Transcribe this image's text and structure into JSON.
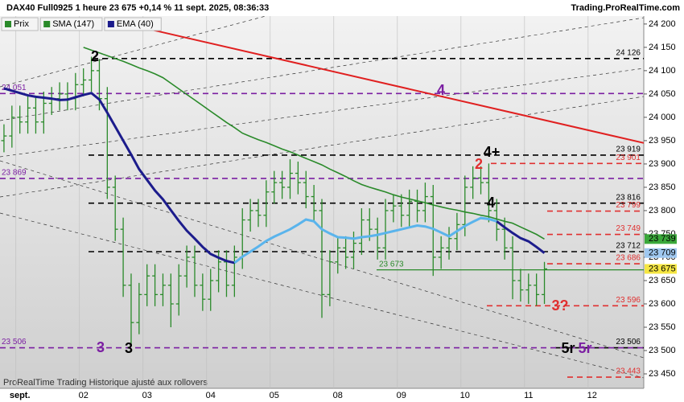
{
  "chart_data": {
    "type": "ohlc",
    "title": "DAX40 Full0925 1 heure 23 675 +0,14 % 11 sept. 2025, 08:36:33",
    "source": "Trading.ProRealTime.com",
    "footer": "ProRealTime Trading  Historique ajusté aux rollovers",
    "categories": [
      null,
      null,
      "sept.",
      null,
      null,
      null,
      null,
      null,
      null,
      null,
      "02",
      null,
      null,
      null,
      null,
      null,
      null,
      null,
      "03",
      null,
      null,
      null,
      null,
      null,
      null,
      null,
      "04",
      null,
      null,
      null,
      null,
      null,
      null,
      null,
      "05",
      null,
      null,
      null,
      null,
      null,
      null,
      null,
      "08",
      null,
      null,
      null,
      null,
      null,
      null,
      null,
      "09",
      null,
      null,
      null,
      null,
      null,
      null,
      null,
      "10",
      null,
      null,
      null,
      null,
      null,
      null,
      null,
      "11",
      null,
      null,
      null,
      null,
      null,
      null,
      null,
      "12",
      null,
      null,
      null,
      null,
      null,
      null
    ],
    "ylim": [
      23419,
      24217
    ],
    "yticks": [
      {
        "value": 23450,
        "label": "23 450"
      },
      {
        "value": 23500,
        "label": "23 500"
      },
      {
        "value": 23550,
        "label": "23 550"
      },
      {
        "value": 23600,
        "label": "23 600"
      },
      {
        "value": 23650,
        "label": "23 650"
      },
      {
        "value": 23700,
        "label": "23 700"
      },
      {
        "value": 23750,
        "label": "23 750"
      },
      {
        "value": 23800,
        "label": "23 800"
      },
      {
        "value": 23850,
        "label": "23 850"
      },
      {
        "value": 23900,
        "label": "23 900"
      },
      {
        "value": 23950,
        "label": "23 950"
      },
      {
        "value": 24000,
        "label": "24 000"
      },
      {
        "value": 24050,
        "label": "24 050"
      },
      {
        "value": 24100,
        "label": "24 100"
      },
      {
        "value": 24150,
        "label": "24 150"
      },
      {
        "value": 24200,
        "label": "24 200"
      }
    ],
    "series": [
      {
        "name": "Prix",
        "color": "#2a8a2a",
        "last_label": {
          "value": 23675,
          "label": "23 675",
          "color": "#f5e642"
        },
        "open": [
          23950,
          23960,
          24000,
          23990,
          24020,
          23990,
          24030,
          24040,
          24050,
          24040,
          24070,
          24080,
          24100,
          24040,
          23850,
          23760,
          23640,
          23560,
          23620,
          23660,
          23620,
          23640,
          23600,
          23660,
          23700,
          23640,
          23610,
          23650,
          23690,
          23640,
          23700,
          23780,
          23800,
          23790,
          23840,
          23860,
          23850,
          23880,
          23860,
          23830,
          23800,
          23620,
          23690,
          23720,
          23700,
          23730,
          23780,
          23760,
          23720,
          23800,
          23810,
          23790,
          23820,
          23800,
          23830,
          23700,
          23720,
          23740,
          23770,
          23850,
          23870,
          23860,
          23800,
          23760,
          23720,
          23650,
          23630,
          23640,
          23620,
          null,
          null,
          null,
          null,
          null,
          null,
          null,
          null,
          null,
          null,
          null,
          null
        ],
        "high": [
          23985,
          24025,
          24025,
          24045,
          24045,
          24055,
          24065,
          24075,
          24075,
          24095,
          24105,
          24130,
          24125,
          24065,
          23875,
          23785,
          23665,
          23645,
          23685,
          23685,
          23665,
          23665,
          23685,
          23725,
          23725,
          23665,
          23675,
          23715,
          23715,
          23725,
          23805,
          23825,
          23825,
          23865,
          23885,
          23885,
          23910,
          23905,
          23885,
          23855,
          23825,
          23715,
          23745,
          23745,
          23755,
          23805,
          23805,
          23785,
          23825,
          23835,
          23835,
          23845,
          23845,
          23860,
          23855,
          23745,
          23765,
          23795,
          23875,
          23895,
          23895,
          23901,
          23825,
          23785,
          23745,
          23675,
          23665,
          23665,
          23690,
          null,
          null,
          null,
          null,
          null,
          null,
          null,
          null,
          null,
          null,
          null,
          null
        ],
        "low": [
          23925,
          23935,
          23965,
          23965,
          23965,
          23965,
          24005,
          24015,
          24015,
          24015,
          24045,
          24055,
          24015,
          23825,
          23735,
          23615,
          23510,
          23535,
          23595,
          23595,
          23595,
          23550,
          23575,
          23635,
          23615,
          23585,
          23585,
          23625,
          23615,
          23615,
          23675,
          23755,
          23765,
          23765,
          23815,
          23825,
          23825,
          23835,
          23805,
          23775,
          23570,
          23595,
          23665,
          23675,
          23675,
          23705,
          23735,
          23695,
          23695,
          23775,
          23765,
          23765,
          23775,
          23775,
          23660,
          23675,
          23695,
          23715,
          23745,
          23825,
          23835,
          23775,
          23735,
          23695,
          23610,
          23605,
          23600,
          23596,
          23600,
          null,
          null,
          null,
          null,
          null,
          null,
          null,
          null,
          null,
          null,
          null,
          null
        ],
        "close": [
          23960,
          24000,
          23990,
          24020,
          23990,
          24030,
          24040,
          24050,
          24040,
          24070,
          24080,
          24100,
          24040,
          23850,
          23760,
          23640,
          23560,
          23620,
          23660,
          23620,
          23640,
          23600,
          23660,
          23700,
          23640,
          23610,
          23650,
          23690,
          23640,
          23700,
          23780,
          23800,
          23790,
          23840,
          23860,
          23850,
          23880,
          23860,
          23830,
          23800,
          23620,
          23690,
          23720,
          23700,
          23730,
          23780,
          23760,
          23720,
          23800,
          23810,
          23790,
          23820,
          23800,
          23830,
          23700,
          23720,
          23740,
          23770,
          23850,
          23870,
          23860,
          23800,
          23760,
          23720,
          23650,
          23630,
          23640,
          23620,
          23675,
          null,
          null,
          null,
          null,
          null,
          null,
          null,
          null,
          null,
          null,
          null,
          null
        ]
      },
      {
        "name": "SMA (147)",
        "type": "line",
        "color": "#2a8a2a",
        "last_label": {
          "value": 23739,
          "label": "23 739",
          "color": "#3aa83a"
        },
        "values": [
          null,
          null,
          null,
          null,
          null,
          null,
          null,
          null,
          null,
          null,
          24150,
          24144,
          24138,
          24132,
          24126,
          24120,
          24113,
          24106,
          24100,
          24093,
          24085,
          24073,
          24061,
          24049,
          24037,
          24025,
          24013,
          24001,
          23989,
          23978,
          23966,
          23959,
          23952,
          23946,
          23939,
          23932,
          23926,
          23919,
          23912,
          23905,
          23898,
          23889,
          23881,
          23873,
          23864,
          23856,
          23850,
          23845,
          23840,
          23834,
          23829,
          23825,
          23821,
          23817,
          23812,
          23808,
          23804,
          23801,
          23797,
          23794,
          23790,
          23787,
          23782,
          23777,
          23773,
          23765,
          23757,
          23749,
          23739,
          null,
          null,
          null,
          null,
          null,
          null,
          null,
          null,
          null,
          null,
          null,
          null
        ]
      },
      {
        "name": "EMA (40)",
        "type": "line",
        "color": "#1c1c8c",
        "last_label": {
          "value": 23709,
          "label": "23 709",
          "color": "#9fc8f0"
        },
        "values": [
          24062,
          24057,
          24052,
          24047,
          24044,
          24042,
          24040,
          24037,
          24038,
          24043,
          24048,
          24052,
          24038,
          24010,
          23980,
          23950,
          23920,
          23889,
          23866,
          23843,
          23824,
          23801,
          23778,
          23757,
          23740,
          23722,
          23707,
          23699,
          23692,
          23688,
          23701,
          23712,
          23723,
          23735,
          23744,
          23752,
          23760,
          23770,
          23781,
          23777,
          23760,
          23751,
          23743,
          23742,
          23740,
          23743,
          23745,
          23748,
          23752,
          23756,
          23760,
          23764,
          23768,
          23766,
          23761,
          23753,
          23745,
          23756,
          23767,
          23776,
          23784,
          23782,
          23777,
          23764,
          23752,
          23741,
          23734,
          23722,
          23709,
          null,
          null,
          null,
          null,
          null,
          null,
          null,
          null,
          null,
          null,
          null,
          null
        ],
        "colors": [
          "#1c1c8c",
          "#1c1c8c",
          "#1c1c8c",
          "#1c1c8c",
          "#1c1c8c",
          "#1c1c8c",
          "#1c1c8c",
          "#1c1c8c",
          "#1c1c8c",
          "#1c1c8c",
          "#1c1c8c",
          "#1c1c8c",
          "#1c1c8c",
          "#1c1c8c",
          "#1c1c8c",
          "#1c1c8c",
          "#1c1c8c",
          "#1c1c8c",
          "#1c1c8c",
          "#1c1c8c",
          "#1c1c8c",
          "#1c1c8c",
          "#1c1c8c",
          "#1c1c8c",
          "#1c1c8c",
          "#1c1c8c",
          "#1c1c8c",
          "#1c1c8c",
          "#1c1c8c",
          "#1c1c8c",
          "#5ab4ec",
          "#5ab4ec",
          "#5ab4ec",
          "#5ab4ec",
          "#5ab4ec",
          "#5ab4ec",
          "#5ab4ec",
          "#5ab4ec",
          "#5ab4ec",
          "#5ab4ec",
          "#5ab4ec",
          "#5ab4ec",
          "#5ab4ec",
          "#5ab4ec",
          "#5ab4ec",
          "#5ab4ec",
          "#5ab4ec",
          "#5ab4ec",
          "#5ab4ec",
          "#5ab4ec",
          "#5ab4ec",
          "#5ab4ec",
          "#5ab4ec",
          "#5ab4ec",
          "#5ab4ec",
          "#5ab4ec",
          "#5ab4ec",
          "#5ab4ec",
          "#5ab4ec",
          "#5ab4ec",
          "#5ab4ec",
          "#5ab4ec",
          "#5ab4ec",
          "#1c1c8c",
          "#1c1c8c",
          "#1c1c8c",
          "#1c1c8c",
          "#1c1c8c",
          "#1c1c8c",
          null,
          null,
          null,
          null,
          null,
          null,
          null,
          null,
          null,
          null,
          null,
          null
        ]
      }
    ],
    "levels": [
      {
        "value": 24126,
        "label": "24 126",
        "color": "#000000",
        "style": "dashed",
        "label_side": "right"
      },
      {
        "value": 24051,
        "label": "24 051",
        "color": "#7b1fa2",
        "style": "dashed",
        "label_side": "left"
      },
      {
        "value": 23919,
        "label": "23 919",
        "color": "#000000",
        "style": "dashed",
        "label_side": "right"
      },
      {
        "value": 23901,
        "label": "23 901",
        "color": "#e03030",
        "style": "dashed",
        "label_side": "right"
      },
      {
        "value": 23869,
        "label": "23 869",
        "color": "#7b1fa2",
        "style": "dashed",
        "label_side": "left"
      },
      {
        "value": 23816,
        "label": "23 816",
        "color": "#000000",
        "style": "dashed",
        "label_side": "right"
      },
      {
        "value": 23799,
        "label": "23 799",
        "color": "#e03030",
        "style": "dashed",
        "label_side": "right"
      },
      {
        "value": 23749,
        "label": "23 749",
        "color": "#e03030",
        "style": "dashed",
        "label_side": "right"
      },
      {
        "value": 23712,
        "label": "23 712",
        "color": "#000000",
        "style": "dashed",
        "label_side": "right"
      },
      {
        "value": 23686,
        "label": "23 686",
        "color": "#e03030",
        "style": "dashed",
        "label_side": "right"
      },
      {
        "value": 23673,
        "label": "23 673",
        "color": "#2a8a2a",
        "style": "solid",
        "label_side": "start"
      },
      {
        "value": 23596,
        "label": "23 596",
        "color": "#e03030",
        "style": "dashed",
        "label_side": "right"
      },
      {
        "value": 23506,
        "label": "23 506",
        "color": "#000000",
        "style": "dashed",
        "label_side": "right"
      },
      {
        "value": 23506,
        "label": "23 506",
        "color": "#7b1fa2",
        "style": "dashed",
        "label_side": "left"
      },
      {
        "value": 23443,
        "label": "23 443",
        "color": "#e03030",
        "style": "dashed",
        "label_side": "right"
      }
    ],
    "trend_lines": [
      {
        "color": "#e02020",
        "values": [
          24191,
          23945
        ]
      }
    ],
    "annotations": [
      {
        "text": "2",
        "color": "#000000"
      },
      {
        "text": "3",
        "color": "#000000"
      },
      {
        "text": "3",
        "color": "#7b1fa2"
      },
      {
        "text": "4",
        "color": "#7b1fa2"
      },
      {
        "text": "4+",
        "color": "#000000"
      },
      {
        "text": "2",
        "color": "#e03030"
      },
      {
        "text": "4",
        "color": "#000000"
      },
      {
        "text": "3?",
        "color": "#e03030"
      },
      {
        "text": "5r",
        "color": "#000000"
      },
      {
        "text": "5r",
        "color": "#7b1fa2"
      }
    ]
  }
}
